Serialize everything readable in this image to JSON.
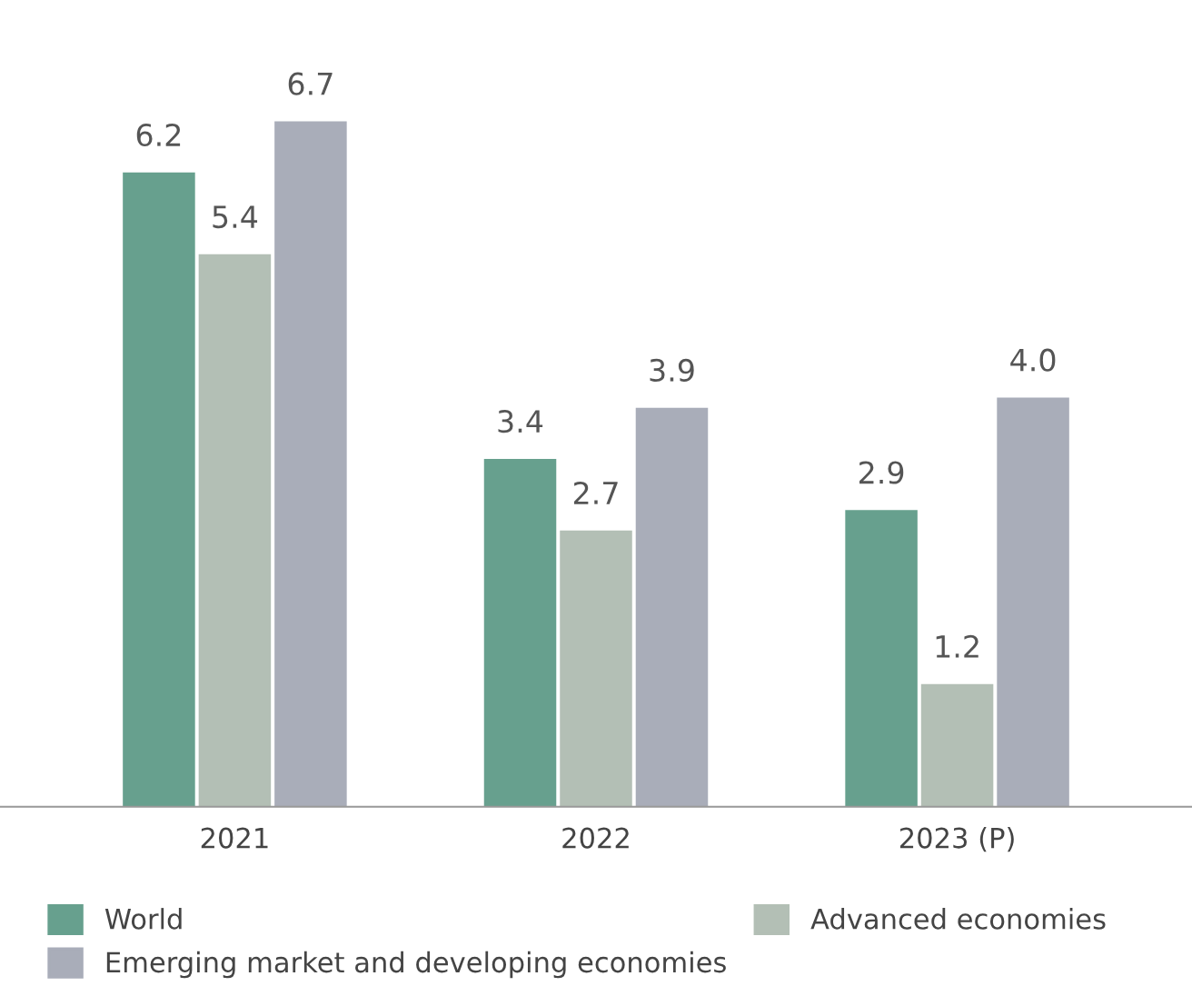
{
  "chart_data": {
    "type": "bar",
    "categories": [
      "2021",
      "2022",
      "2023 (P)"
    ],
    "series": [
      {
        "name": "World",
        "color": "#67a08e",
        "values": [
          6.2,
          3.4,
          2.9
        ],
        "value_labels": [
          "6.2",
          "3.4",
          "2.9"
        ]
      },
      {
        "name": "Advanced economies",
        "color": "#b3bfb5",
        "values": [
          5.4,
          2.7,
          1.2
        ],
        "value_labels": [
          "5.4",
          "2.7",
          "1.2"
        ]
      },
      {
        "name": "Emerging market and developing economies",
        "color": "#a9adb9",
        "values": [
          6.7,
          3.9,
          4.0
        ],
        "value_labels": [
          "6.7",
          "3.9",
          "4.0"
        ]
      }
    ],
    "legend": "bottom",
    "grid": false
  }
}
